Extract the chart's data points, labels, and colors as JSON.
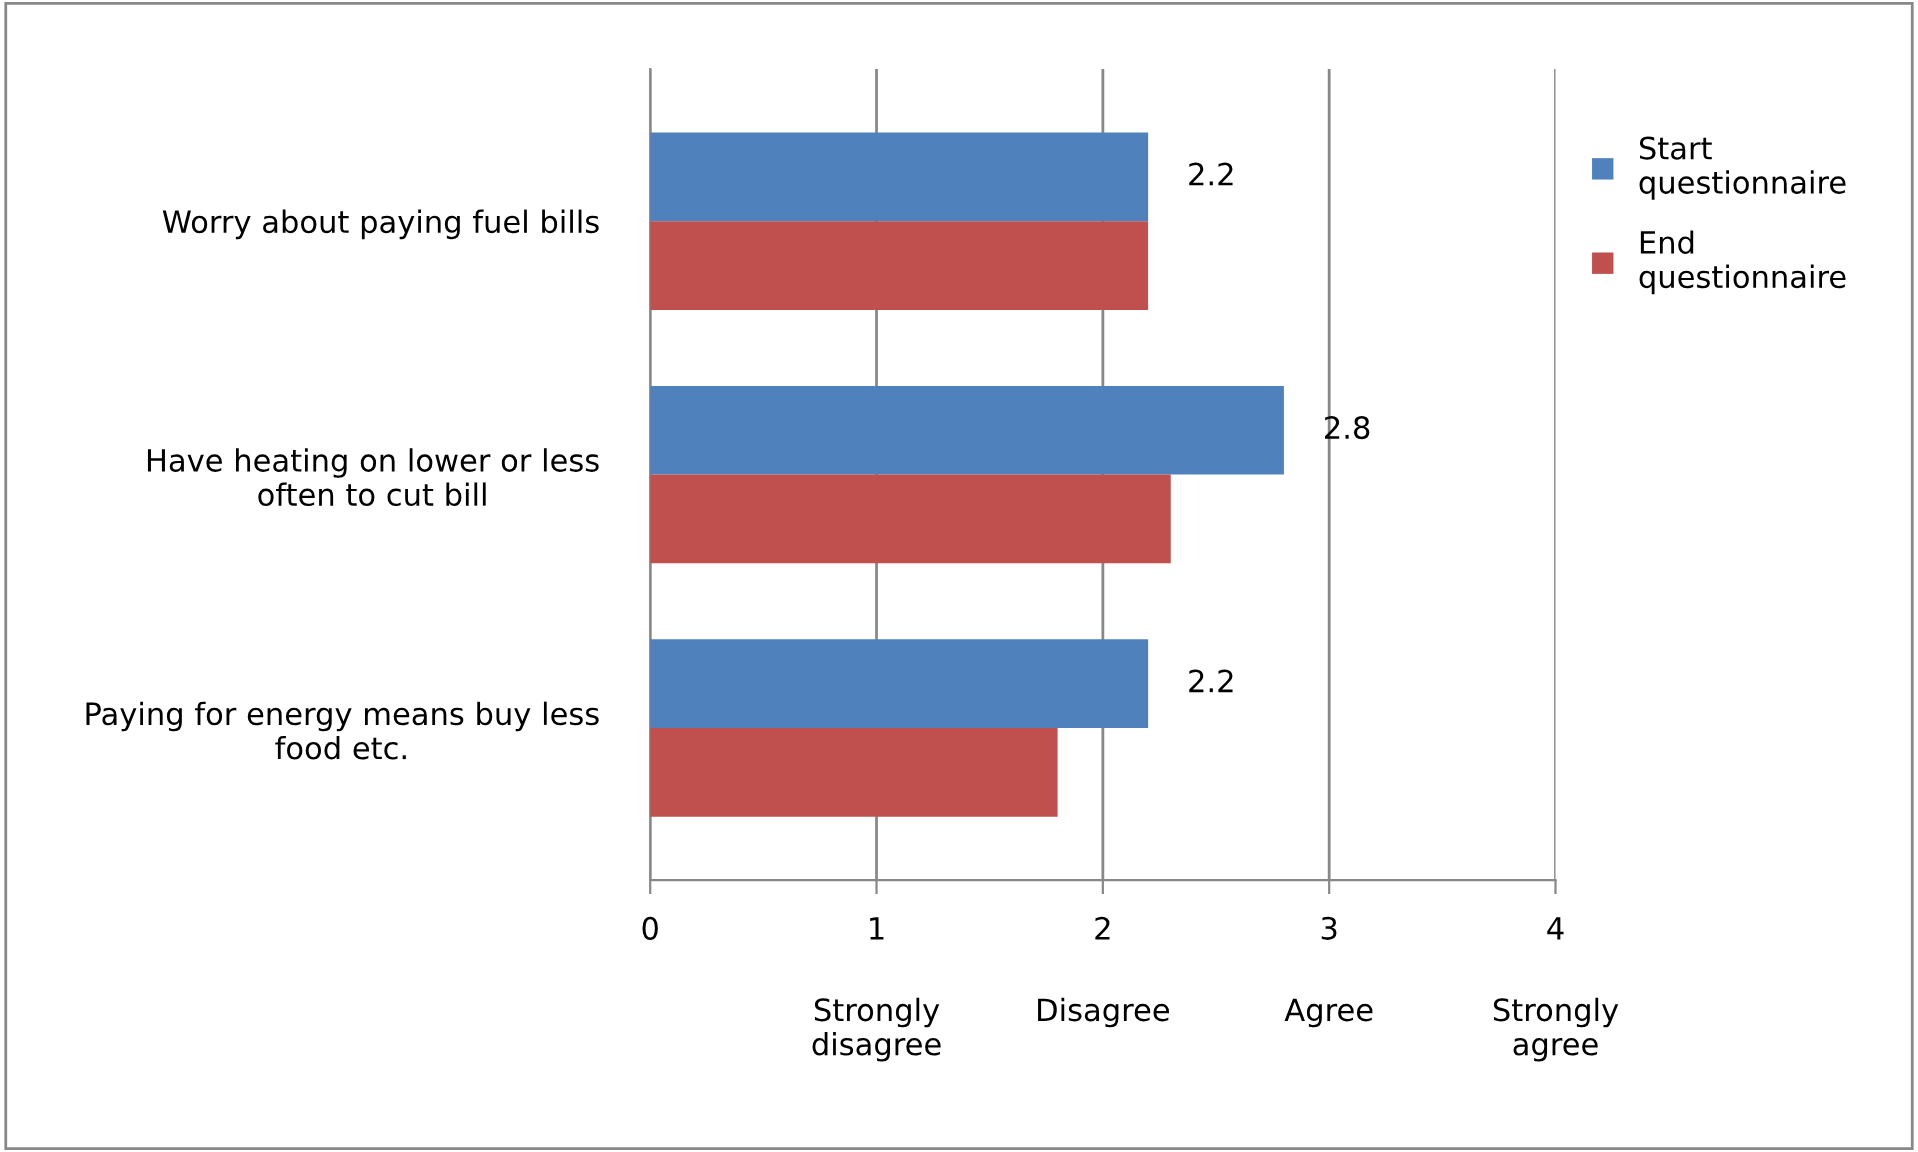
{
  "chart_data": {
    "type": "bar",
    "orientation": "horizontal",
    "categories": [
      "Worry about paying fuel bills",
      "Have heating on lower or less\noften to cut bill",
      "Paying for energy means buy less\nfood etc."
    ],
    "series": [
      {
        "name": "Start\nquestionnaire",
        "color": "#4f81bd",
        "values": [
          2.2,
          2.8,
          2.2
        ],
        "value_labels": [
          "2.2",
          "2.8",
          "2.2"
        ]
      },
      {
        "name": "End\nquestionnaire",
        "color": "#c0504d",
        "values": [
          2.2,
          2.3,
          1.8
        ]
      }
    ],
    "xlim": [
      0,
      4
    ],
    "xticks": [
      0,
      1,
      2,
      3,
      4
    ],
    "annotations": [
      "Strongly\ndisagree",
      "Disagree",
      "Agree",
      "Strongly\nagree"
    ],
    "grid": "x",
    "legend": "right"
  }
}
